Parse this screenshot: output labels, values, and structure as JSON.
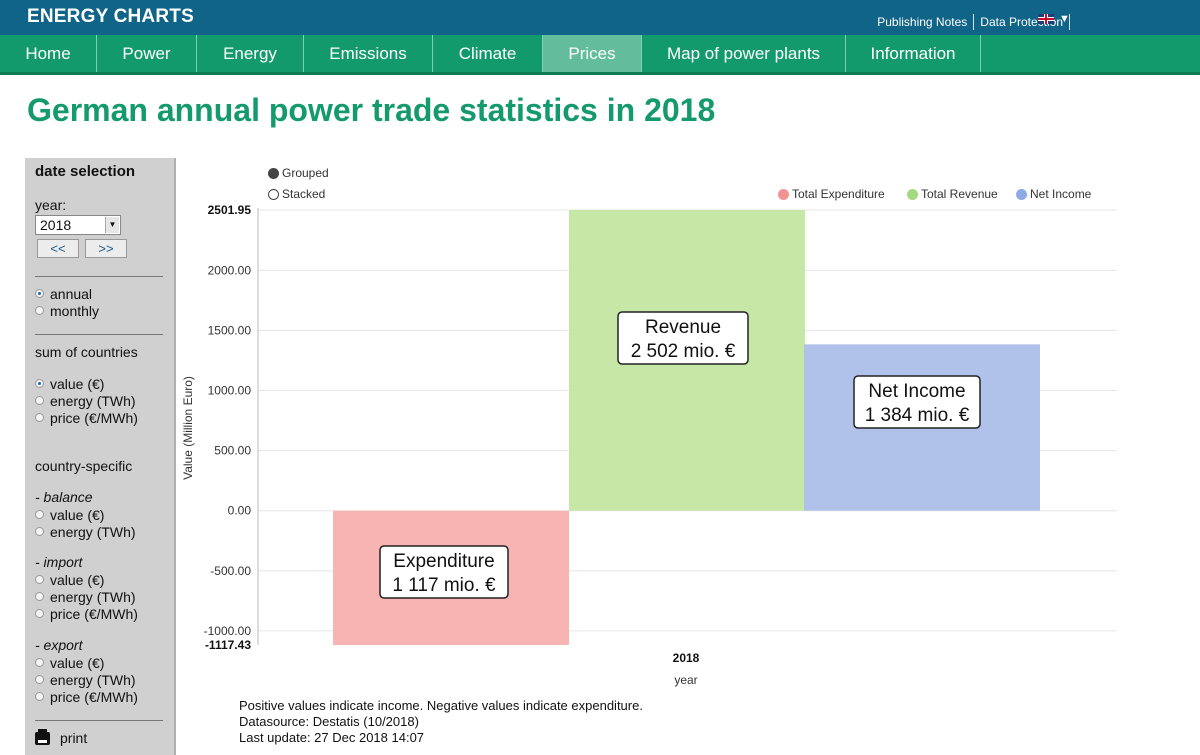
{
  "header": {
    "brand": "ENERGY CHARTS",
    "links": [
      "Publishing Notes",
      "Data Protection"
    ],
    "language_caret": "▼"
  },
  "nav": {
    "items": [
      "Home",
      "Power",
      "Energy",
      "Emissions",
      "Climate",
      "Prices",
      "Map of power plants",
      "Information"
    ],
    "active": "Prices"
  },
  "page_title": "German annual power trade statistics in 2018",
  "sidebar": {
    "date_selection": "date selection",
    "year_label": "year:",
    "year_value": "2018",
    "prev_label": "<<",
    "next_label": ">>",
    "period_options": [
      "annual",
      "monthly"
    ],
    "period_selected": "annual",
    "sum_of_countries": "sum of countries",
    "sum_options": [
      "value (€)",
      "energy (TWh)",
      "price (€/MWh)"
    ],
    "sum_selected": "value (€)",
    "country_specific": "country-specific",
    "balance_label": "- balance",
    "balance_options": [
      "value (€)",
      "energy (TWh)"
    ],
    "import_label": "- import",
    "import_options": [
      "value (€)",
      "energy (TWh)",
      "price (€/MWh)"
    ],
    "export_label": "- export",
    "export_options": [
      "value (€)",
      "energy (TWh)",
      "price (€/MWh)"
    ],
    "print_label": "print"
  },
  "chart_controls": {
    "grouped_label": "Grouped",
    "stacked_label": "Stacked",
    "selected": "Grouped"
  },
  "footer": {
    "note": "Positive values indicate income. Negative values indicate expenditure.",
    "source": "Datasource: Destatis (10/2018)",
    "updated": "Last update: 27 Dec 2018 14:07"
  },
  "colors": {
    "expenditure": "#f8b3b3",
    "revenue": "#c7e7a7",
    "net_income": "#b0c2e9",
    "legend_expenditure": "#f29393",
    "legend_revenue": "#a3d97f",
    "legend_net_income": "#8fa9e4"
  },
  "chart_data": {
    "type": "bar",
    "categories": [
      "2018"
    ],
    "series": [
      {
        "name": "Total Expenditure",
        "values": [
          -1117.43
        ],
        "label": "Expenditure",
        "sublabel": "1 117 mio. €"
      },
      {
        "name": "Total Revenue",
        "values": [
          2501.95
        ],
        "label": "Revenue",
        "sublabel": "2 502 mio. €"
      },
      {
        "name": "Net Income",
        "values": [
          1384
        ],
        "label": "Net Income",
        "sublabel": "1 384 mio. €"
      }
    ],
    "xlabel": "year",
    "ylabel": "Value (Million Euro)",
    "ylim": [
      -1117.43,
      2501.95
    ],
    "yticks": [
      "2000.00",
      "1500.00",
      "1000.00",
      "500.00",
      "0.00",
      "-500.00",
      "-1000.00"
    ],
    "ymax_label": "2501.95",
    "ymin_label": "-1117.43",
    "grid": true,
    "legend_position": "top-right"
  }
}
